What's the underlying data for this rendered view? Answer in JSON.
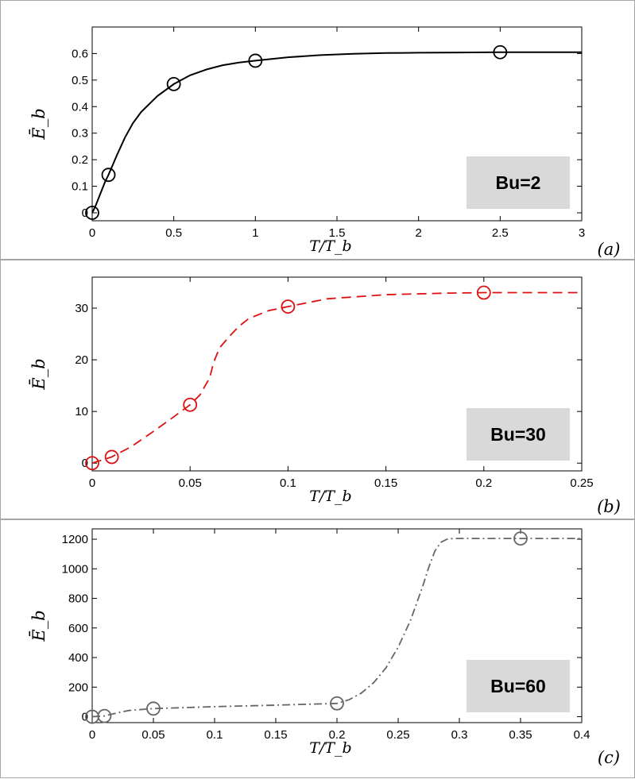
{
  "chart_data": [
    {
      "type": "line",
      "panel_label": "(a)",
      "badge": "Bu=2",
      "xlabel": "T/T_b",
      "ylabel": "Ē_b",
      "xlim": [
        0,
        3
      ],
      "ylim": [
        -0.03,
        0.7
      ],
      "xticks": [
        0,
        0.5,
        1,
        1.5,
        2,
        2.5,
        3
      ],
      "xtick_labels": [
        "0",
        "0.5",
        "1",
        "1.5",
        "2",
        "2.5",
        "3"
      ],
      "yticks": [
        0,
        0.1,
        0.2,
        0.3,
        0.4,
        0.5,
        0.6
      ],
      "ytick_labels": [
        "0",
        "0.1",
        "0.2",
        "0.3",
        "0.4",
        "0.5",
        "0.6"
      ],
      "grid": false,
      "line_style": "solid",
      "color": "#000000",
      "series": [
        {
          "values_x": [
            0,
            0.1,
            0.5,
            1,
            2.5
          ],
          "values_y": [
            0,
            0.143,
            0.485,
            0.573,
            0.605
          ]
        }
      ],
      "curve": {
        "x": [
          0,
          0.02,
          0.05,
          0.08,
          0.1,
          0.15,
          0.2,
          0.25,
          0.3,
          0.4,
          0.5,
          0.6,
          0.7,
          0.8,
          0.9,
          1,
          1.2,
          1.4,
          1.6,
          1.8,
          2,
          2.25,
          2.5,
          2.75,
          3
        ],
        "y": [
          0,
          0.025,
          0.072,
          0.118,
          0.143,
          0.215,
          0.283,
          0.338,
          0.38,
          0.44,
          0.485,
          0.518,
          0.54,
          0.556,
          0.566,
          0.573,
          0.586,
          0.594,
          0.599,
          0.602,
          0.603,
          0.604,
          0.605,
          0.605,
          0.605
        ]
      }
    },
    {
      "type": "line",
      "panel_label": "(b)",
      "badge": "Bu=30",
      "xlabel": "T/T_b",
      "ylabel": "Ē_b",
      "xlim": [
        0,
        0.25
      ],
      "ylim": [
        -1.5,
        36
      ],
      "xticks": [
        0,
        0.05,
        0.1,
        0.15,
        0.2,
        0.25
      ],
      "xtick_labels": [
        "0",
        "0.05",
        "0.1",
        "0.15",
        "0.2",
        "0.25"
      ],
      "yticks": [
        0,
        10,
        20,
        30
      ],
      "ytick_labels": [
        "0",
        "10",
        "20",
        "30"
      ],
      "grid": false,
      "line_style": "dashed",
      "color": "#dd1111",
      "series": [
        {
          "values_x": [
            0,
            0.01,
            0.05,
            0.1,
            0.2
          ],
          "values_y": [
            0,
            1.2,
            11.3,
            30.3,
            33
          ]
        }
      ],
      "curve": {
        "x": [
          0,
          0.01,
          0.02,
          0.03,
          0.04,
          0.05,
          0.055,
          0.06,
          0.062,
          0.065,
          0.07,
          0.075,
          0.08,
          0.09,
          0.1,
          0.12,
          0.15,
          0.18,
          0.2,
          0.22,
          0.25
        ],
        "y": [
          0,
          1.2,
          3.2,
          5.8,
          8.5,
          11.3,
          13.2,
          16.5,
          19.5,
          22.3,
          24.5,
          26.5,
          28,
          29.5,
          30.3,
          31.8,
          32.6,
          32.9,
          33,
          33,
          33
        ]
      }
    },
    {
      "type": "line",
      "panel_label": "(c)",
      "badge": "Bu=60",
      "xlabel": "T/T_b",
      "ylabel": "Ē_b",
      "xlim": [
        0,
        0.4
      ],
      "ylim": [
        -40,
        1270
      ],
      "xticks": [
        0,
        0.05,
        0.1,
        0.15,
        0.2,
        0.25,
        0.3,
        0.35,
        0.4
      ],
      "xtick_labels": [
        "0",
        "0.05",
        "0.1",
        "0.15",
        "0.2",
        "0.25",
        "0.3",
        "0.35",
        "0.4"
      ],
      "yticks": [
        0,
        200,
        400,
        600,
        800,
        1000,
        1200
      ],
      "ytick_labels": [
        "0",
        "200",
        "400",
        "600",
        "800",
        "1000",
        "1200"
      ],
      "grid": false,
      "line_style": "dash-dot",
      "color": "#666666",
      "series": [
        {
          "values_x": [
            0,
            0.01,
            0.05,
            0.2,
            0.35
          ],
          "values_y": [
            0,
            5,
            55,
            90,
            1205
          ]
        }
      ],
      "curve": {
        "x": [
          0,
          0.01,
          0.02,
          0.03,
          0.05,
          0.1,
          0.15,
          0.2,
          0.21,
          0.22,
          0.23,
          0.24,
          0.25,
          0.26,
          0.27,
          0.275,
          0.28,
          0.285,
          0.29,
          0.295,
          0.3,
          0.35,
          0.4
        ],
        "y": [
          0,
          5,
          25,
          42,
          55,
          68,
          78,
          90,
          115,
          160,
          230,
          330,
          470,
          650,
          880,
          1010,
          1120,
          1180,
          1200,
          1205,
          1205,
          1205,
          1205
        ]
      }
    }
  ]
}
